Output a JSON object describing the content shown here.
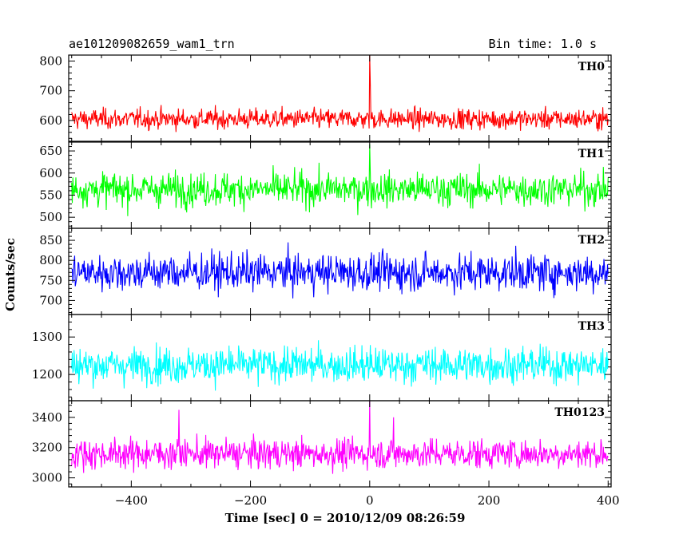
{
  "header": {
    "object_name": "ae101209082659_wam1_trn",
    "bin_time": "Bin time: 1.0 s"
  },
  "chart_data": {
    "type": "line",
    "title": "ae101209082659_wam1_trn",
    "subtitle": "Bin time: 1.0 s",
    "xlabel": "Time [sec] 0 = 2010/12/09 08:26:59",
    "ylabel": "Counts/sec",
    "xlim": [
      -505,
      405
    ],
    "x_ticks": [
      -400,
      -200,
      0,
      200,
      400
    ],
    "x_tick_labels": [
      "−400",
      "−200",
      "0",
      "200",
      "400"
    ],
    "grid": false,
    "panels": [
      {
        "name": "TH0",
        "color": "#ff0000",
        "ylim": [
          530,
          820
        ],
        "y_ticks": [
          600,
          700,
          800
        ],
        "mean": 605,
        "noise": 24,
        "clip": [
          550,
          710
        ],
        "spikes": [
          {
            "x": 0,
            "value": 820
          },
          {
            "x": 1,
            "value": 720
          }
        ]
      },
      {
        "name": "TH1",
        "color": "#00ff00",
        "ylim": [
          475,
          670
        ],
        "y_ticks": [
          500,
          550,
          600,
          650
        ],
        "mean": 563,
        "noise": 27,
        "clip": [
          485,
          655
        ],
        "spikes": [
          {
            "x": 0,
            "value": 665
          }
        ]
      },
      {
        "name": "TH2",
        "color": "#0000ff",
        "ylim": [
          665,
          880
        ],
        "y_ticks": [
          700,
          750,
          800,
          850
        ],
        "mean": 770,
        "noise": 33,
        "clip": [
          670,
          880
        ],
        "spikes": []
      },
      {
        "name": "TH3",
        "color": "#00ffff",
        "ylim": [
          1130,
          1360
        ],
        "y_ticks": [
          1200,
          1300
        ],
        "mean": 1225,
        "noise": 34,
        "clip": [
          1140,
          1345
        ],
        "spikes": []
      },
      {
        "name": "TH0123",
        "color": "#ff00ff",
        "ylim": [
          2940,
          3510
        ],
        "y_ticks": [
          3000,
          3200,
          3400
        ],
        "mean": 3160,
        "noise": 70,
        "clip": [
          2960,
          3390
        ],
        "spikes": [
          {
            "x": 0,
            "value": 3510
          },
          {
            "x": -320,
            "value": 3450
          },
          {
            "x": 40,
            "value": 3400
          }
        ]
      }
    ]
  }
}
